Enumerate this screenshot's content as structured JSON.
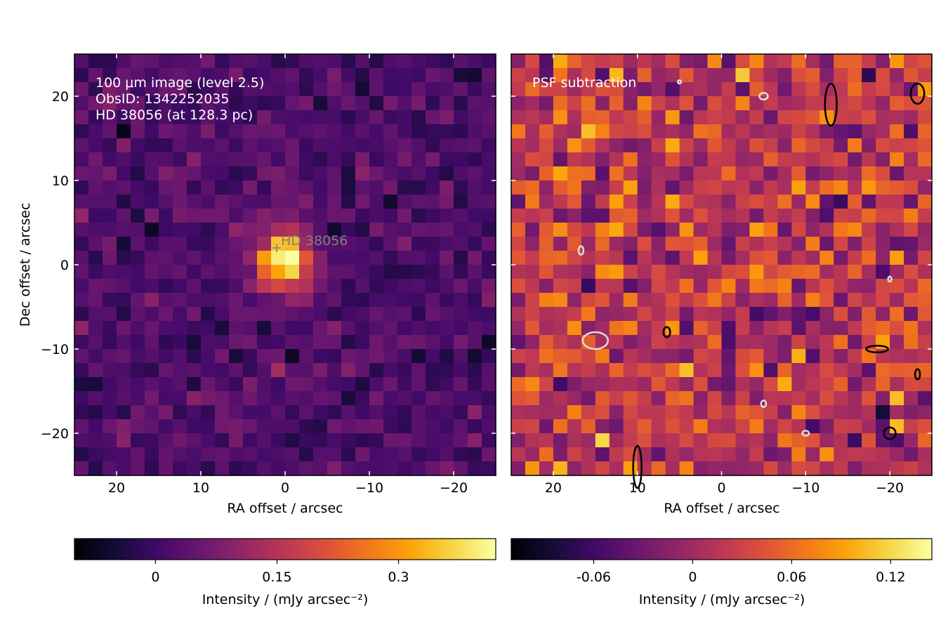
{
  "figure": {
    "ylabel": "Dec offset / arcsec"
  },
  "chart_data": [
    {
      "type": "heatmap",
      "panel": "left",
      "colormap": "inferno",
      "annotation_lines": [
        "100 μm image (level 2.5)",
        "ObsID: 1342252035",
        "HD 38056 (at 128.3 pc)"
      ],
      "marker": {
        "label": "HD 38056",
        "x": 1.0,
        "y": 2.0,
        "symbol": "+"
      },
      "xlabel": "RA offset / arcsec",
      "xlim": [
        25,
        -25
      ],
      "ylim": [
        -25,
        25
      ],
      "xticks": [
        20,
        10,
        0,
        -10,
        -20
      ],
      "xtick_labels": [
        "20",
        "10",
        "0",
        "−10",
        "−20"
      ],
      "yticks": [
        20,
        10,
        0,
        -10,
        -20
      ],
      "ytick_labels": [
        "20",
        "10",
        "0",
        "−10",
        "−20"
      ],
      "grid": false,
      "source": {
        "center_x": 0,
        "center_y": 0.5,
        "peak": 0.42,
        "fwhm_arcsec": 5.5
      },
      "background_level": 0.02,
      "colorbar": {
        "vmin": -0.1,
        "vmax": 0.42,
        "ticks": [
          0,
          0.15,
          0.3
        ],
        "tick_labels": [
          "0",
          "0.15",
          "0.3"
        ],
        "label": "Intensity / (mJy arcsec⁻²)"
      }
    },
    {
      "type": "heatmap",
      "panel": "right",
      "colormap": "inferno",
      "annotation_lines": [
        "PSF subtraction"
      ],
      "xlabel": "RA offset / arcsec",
      "xlim": [
        25,
        -25
      ],
      "ylim": [
        -25,
        25
      ],
      "xticks": [
        20,
        10,
        0,
        -10,
        -20
      ],
      "xtick_labels": [
        "20",
        "10",
        "0",
        "−10",
        "−20"
      ],
      "grid": false,
      "contours": [
        {
          "color": "black",
          "center": [
            -13,
            19
          ],
          "rx": 0.7,
          "ry": 2.5
        },
        {
          "color": "black",
          "center": [
            -23.3,
            20.3
          ],
          "rx": 0.8,
          "ry": 1.2
        },
        {
          "color": "black",
          "center": [
            6.5,
            -8
          ],
          "rx": 0.4,
          "ry": 0.6
        },
        {
          "color": "black",
          "center": [
            -18.5,
            -10
          ],
          "rx": 1.3,
          "ry": 0.4
        },
        {
          "color": "black",
          "center": [
            -23.3,
            -13
          ],
          "rx": 0.3,
          "ry": 0.6
        },
        {
          "color": "black",
          "center": [
            -20,
            -20
          ],
          "rx": 0.7,
          "ry": 0.7
        },
        {
          "color": "black",
          "center": [
            10,
            -24
          ],
          "rx": 0.5,
          "ry": 2.5
        },
        {
          "color": "white",
          "center": [
            15,
            -9
          ],
          "rx": 1.5,
          "ry": 1.0
        },
        {
          "color": "white",
          "center": [
            -5,
            20
          ],
          "rx": 0.5,
          "ry": 0.4
        },
        {
          "color": "white",
          "center": [
            16.7,
            1.7
          ],
          "rx": 0.3,
          "ry": 0.5
        },
        {
          "color": "white",
          "center": [
            -5,
            -16.5
          ],
          "rx": 0.3,
          "ry": 0.4
        },
        {
          "color": "white",
          "center": [
            -10,
            -20
          ],
          "rx": 0.4,
          "ry": 0.3
        },
        {
          "color": "white",
          "center": [
            -20,
            -1.7
          ],
          "rx": 0.2,
          "ry": 0.3
        },
        {
          "color": "white",
          "center": [
            5,
            21.7
          ],
          "rx": 0.2,
          "ry": 0.2
        }
      ],
      "colorbar": {
        "vmin": -0.11,
        "vmax": 0.145,
        "ticks": [
          -0.06,
          0,
          0.06,
          0.12
        ],
        "tick_labels": [
          "-0.06",
          "0",
          "0.06",
          "0.12"
        ],
        "label": "Intensity / (mJy arcsec⁻²)"
      }
    }
  ]
}
